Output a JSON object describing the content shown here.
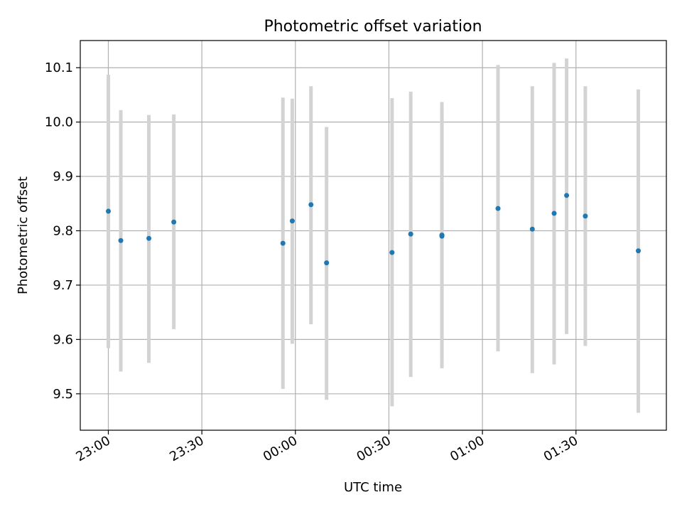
{
  "chart_data": {
    "type": "scatter",
    "title": "Photometric offset variation",
    "xlabel": "UTC time",
    "ylabel": "Photometric offset",
    "grid": true,
    "legend": "none",
    "xlim": [
      "22:51",
      "01:59"
    ],
    "ylim": [
      9.433,
      10.15
    ],
    "xticks": [
      "23:00",
      "23:30",
      "00:00",
      "00:30",
      "01:00",
      "01:30"
    ],
    "yticks": [
      "9.5",
      "9.6",
      "9.7",
      "9.8",
      "9.9",
      "10.0",
      "10.1"
    ],
    "colors": {
      "point": "#1f77b4",
      "errorbar": "#d3d3d3",
      "grid": "#b0b0b0"
    },
    "points": [
      {
        "x": "23:00",
        "y": 9.836,
        "ymin": 9.584,
        "ymax": 10.087
      },
      {
        "x": "23:04",
        "y": 9.782,
        "ymin": 9.541,
        "ymax": 10.022
      },
      {
        "x": "23:13",
        "y": 9.786,
        "ymin": 9.557,
        "ymax": 10.013
      },
      {
        "x": "23:21",
        "y": 9.816,
        "ymin": 9.619,
        "ymax": 10.014
      },
      {
        "x": "23:56",
        "y": 9.777,
        "ymin": 9.509,
        "ymax": 10.045
      },
      {
        "x": "23:59",
        "y": 9.818,
        "ymin": 9.592,
        "ymax": 10.043
      },
      {
        "x": "00:05",
        "y": 9.848,
        "ymin": 9.628,
        "ymax": 10.066
      },
      {
        "x": "00:10",
        "y": 9.741,
        "ymin": 9.489,
        "ymax": 9.991
      },
      {
        "x": "00:31",
        "y": 9.76,
        "ymin": 9.477,
        "ymax": 10.044
      },
      {
        "x": "00:37",
        "y": 9.794,
        "ymin": 9.531,
        "ymax": 10.056
      },
      {
        "x": "00:47",
        "y": 9.792,
        "ymin": 9.547,
        "ymax": 10.037
      },
      {
        "x": "00:47",
        "y": 9.79,
        "ymin": 9.561,
        "ymax": 10.022
      },
      {
        "x": "01:05",
        "y": 9.841,
        "ymin": 9.578,
        "ymax": 10.105
      },
      {
        "x": "01:16",
        "y": 9.803,
        "ymin": 9.538,
        "ymax": 10.066
      },
      {
        "x": "01:23",
        "y": 9.832,
        "ymin": 9.554,
        "ymax": 10.109
      },
      {
        "x": "01:27",
        "y": 9.865,
        "ymin": 9.61,
        "ymax": 10.117
      },
      {
        "x": "01:33",
        "y": 9.827,
        "ymin": 9.588,
        "ymax": 10.066
      },
      {
        "x": "01:50",
        "y": 9.763,
        "ymin": 9.465,
        "ymax": 10.06
      }
    ]
  }
}
